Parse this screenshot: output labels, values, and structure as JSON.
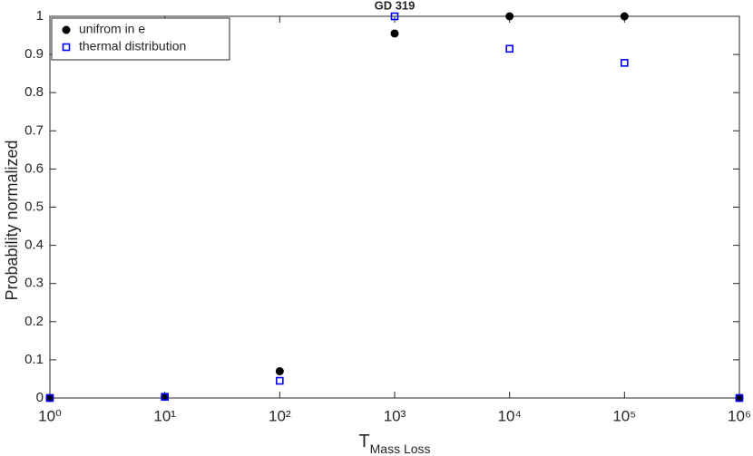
{
  "chart_data": {
    "type": "scatter",
    "title": "GD 319",
    "xlabel": {
      "main": "T",
      "subscript": "Mass Loss"
    },
    "ylabel": "Probability normalized",
    "xscale": "log",
    "xlim": [
      1,
      1000000
    ],
    "xticks": [
      {
        "value": 1,
        "label": "10⁰"
      },
      {
        "value": 10,
        "label": "10¹"
      },
      {
        "value": 100,
        "label": "10²"
      },
      {
        "value": 1000,
        "label": "10³"
      },
      {
        "value": 10000,
        "label": "10⁴"
      },
      {
        "value": 100000,
        "label": "10⁵"
      },
      {
        "value": 1000000,
        "label": "10⁶"
      }
    ],
    "ylim": [
      0,
      1
    ],
    "yticks": [
      0,
      0.1,
      0.2,
      0.3,
      0.4,
      0.5,
      0.6,
      0.7,
      0.8,
      0.9,
      1
    ],
    "legend_position": "upper-left",
    "series": [
      {
        "name": "unifrom in e",
        "color": "#000000",
        "marker": "circle",
        "x": [
          1,
          10,
          100,
          1000,
          10000,
          100000,
          1000000
        ],
        "values": [
          0,
          0.003,
          0.07,
          0.955,
          1,
          1,
          0
        ]
      },
      {
        "name": "thermal distribution",
        "color": "#0000ff",
        "marker": "square",
        "x": [
          1,
          10,
          100,
          1000,
          10000,
          100000,
          1000000
        ],
        "values": [
          0,
          0.003,
          0.045,
          1,
          0.915,
          0.878,
          0
        ]
      }
    ]
  }
}
